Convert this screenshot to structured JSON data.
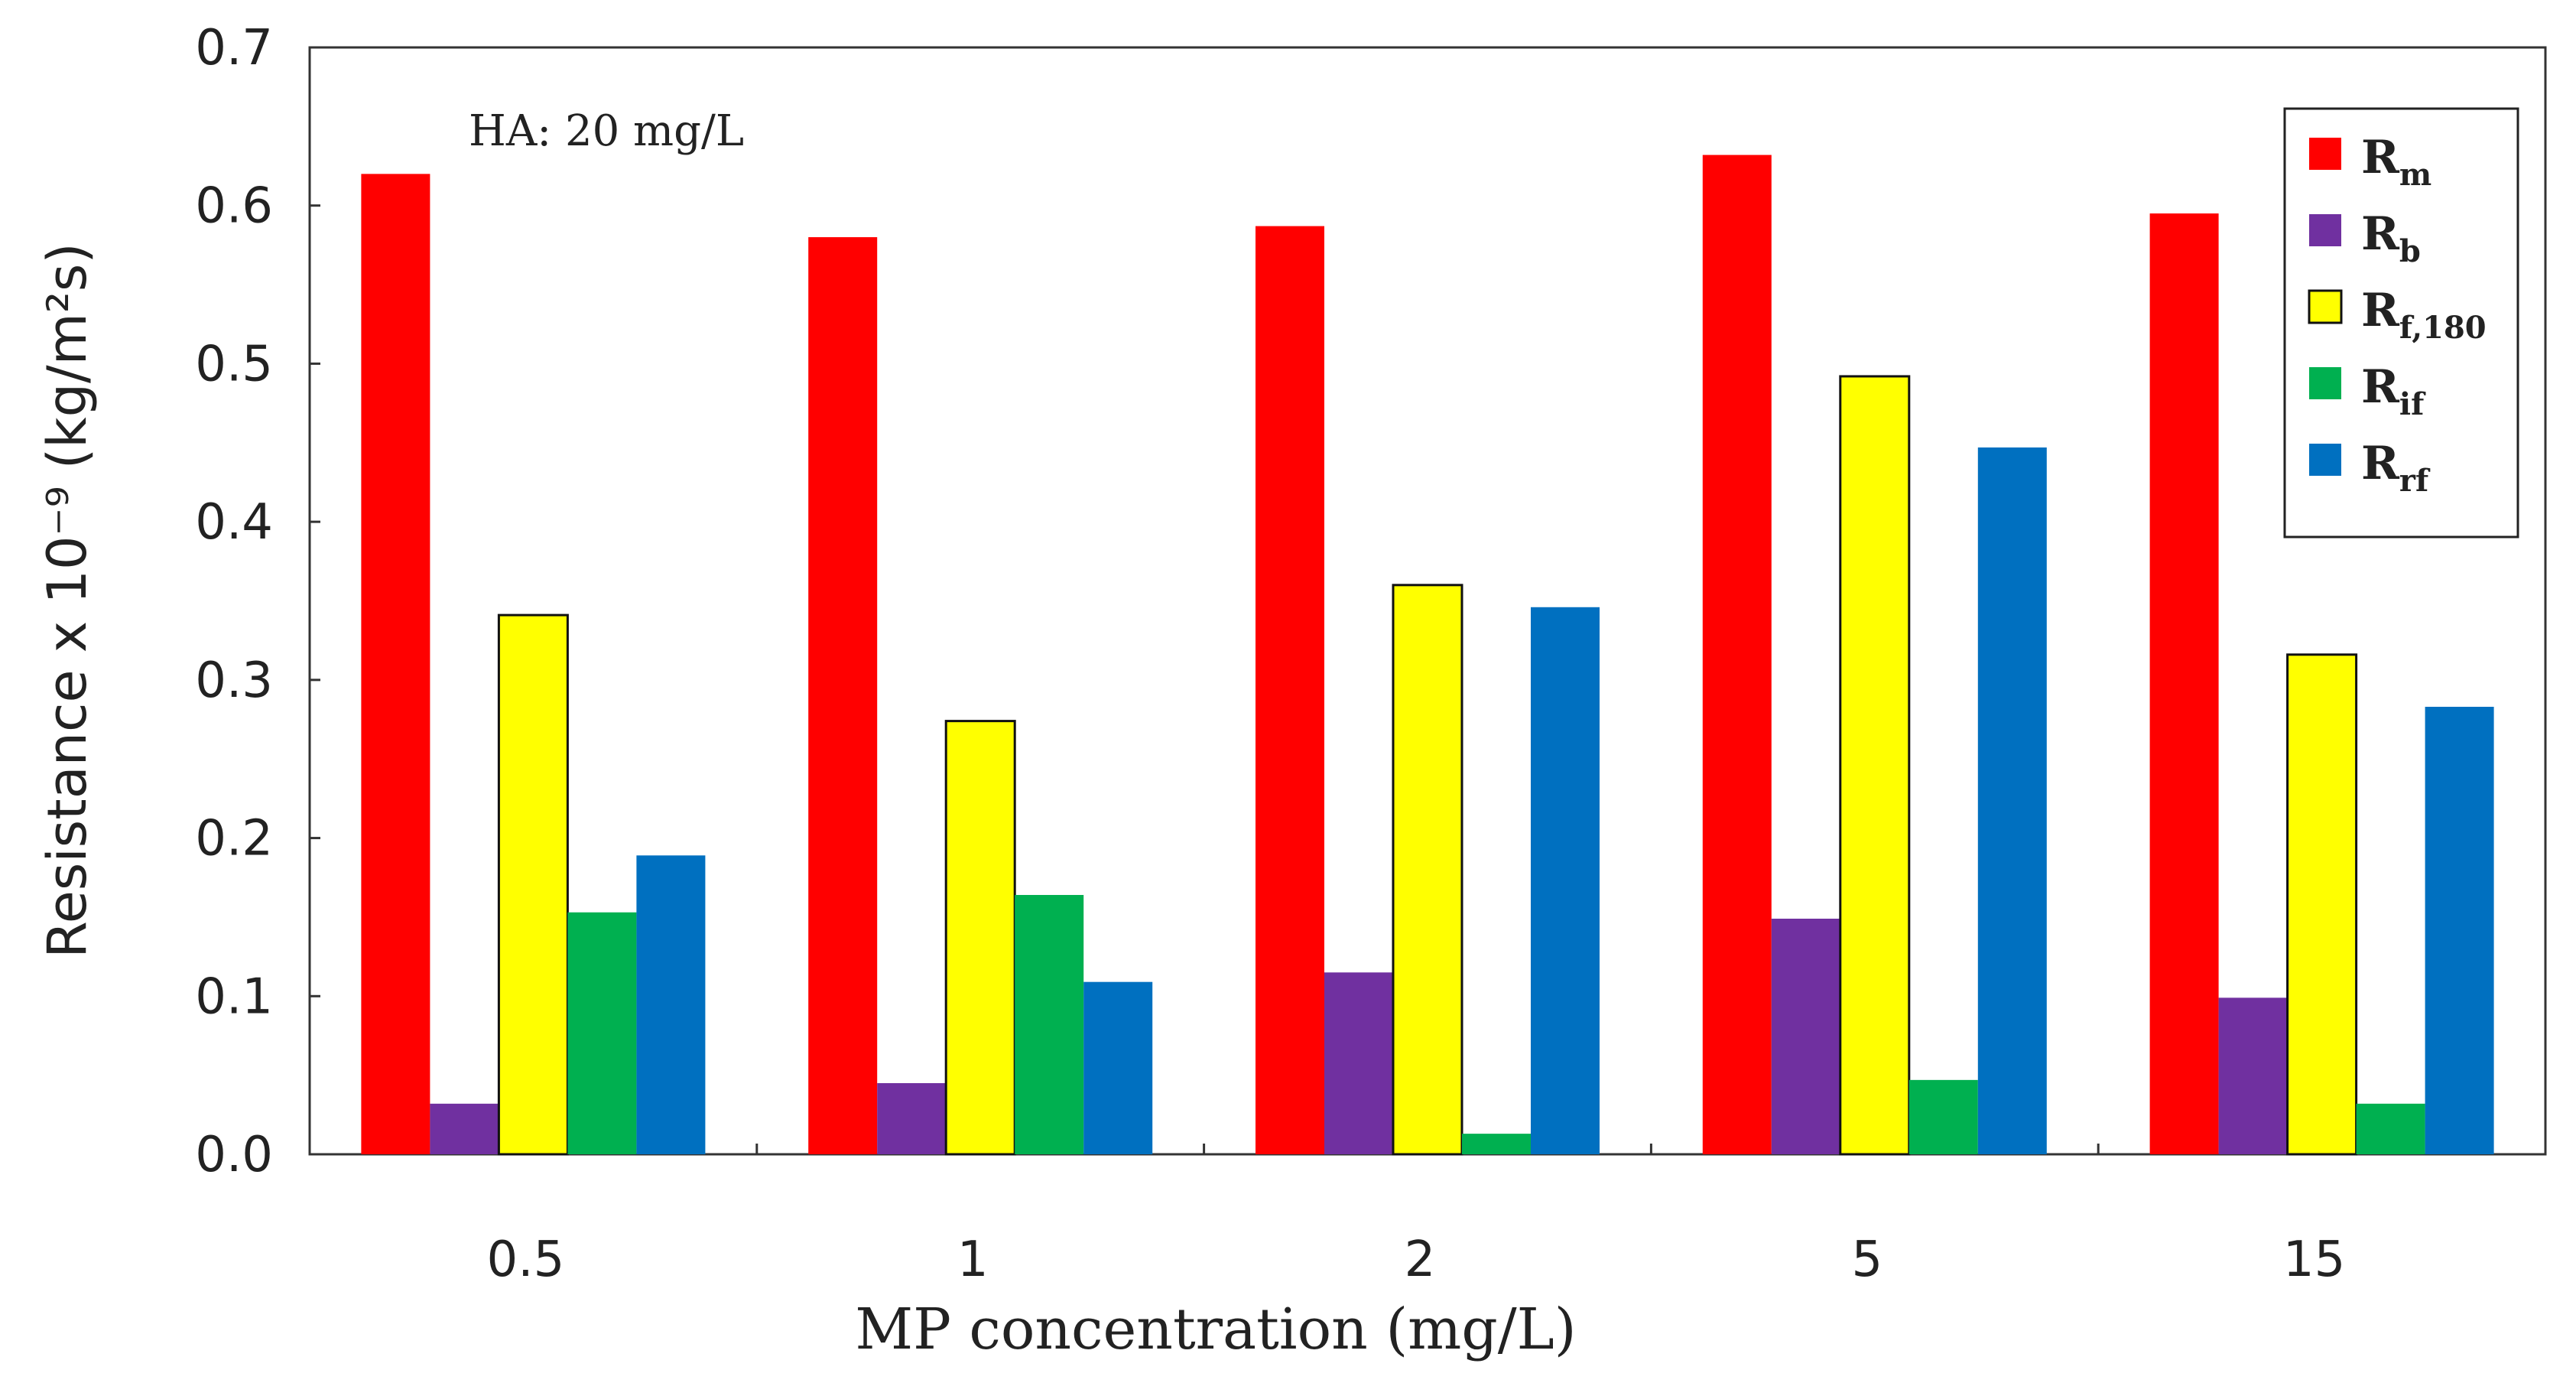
{
  "chart_data": {
    "type": "bar",
    "categories": [
      "0.5",
      "1",
      "2",
      "5",
      "15"
    ],
    "series": [
      {
        "name": "R",
        "sub": "m",
        "color": "#FF0000",
        "outlined": false,
        "values": [
          0.62,
          0.58,
          0.587,
          0.632,
          0.595
        ]
      },
      {
        "name": "R",
        "sub": "b",
        "color": "#7030A0",
        "outlined": false,
        "values": [
          0.032,
          0.045,
          0.115,
          0.149,
          0.099
        ]
      },
      {
        "name": "R",
        "sub": "f,180",
        "color": "#FFFF00",
        "outlined": true,
        "values": [
          0.341,
          0.274,
          0.36,
          0.492,
          0.316
        ]
      },
      {
        "name": "R",
        "sub": "if",
        "color": "#00B050",
        "outlined": false,
        "values": [
          0.153,
          0.164,
          0.013,
          0.047,
          0.032
        ]
      },
      {
        "name": "R",
        "sub": "rf",
        "color": "#0070C0",
        "outlined": false,
        "values": [
          0.189,
          0.109,
          0.346,
          0.447,
          0.283
        ]
      }
    ],
    "ylim": [
      0,
      0.7
    ],
    "yticks": [
      "0.0",
      "0.1",
      "0.2",
      "0.3",
      "0.4",
      "0.5",
      "0.6",
      "0.7"
    ],
    "ytick_values": [
      0,
      0.1,
      0.2,
      0.3,
      0.4,
      0.5,
      0.6,
      0.7
    ],
    "ylabel": "Resistance x 10⁻⁹ (kg/m²s)",
    "xlabel": "MP concentration (mg/L)",
    "annotation": "HA: 20 mg/L",
    "legend_position": "top-right",
    "grid": false
  }
}
